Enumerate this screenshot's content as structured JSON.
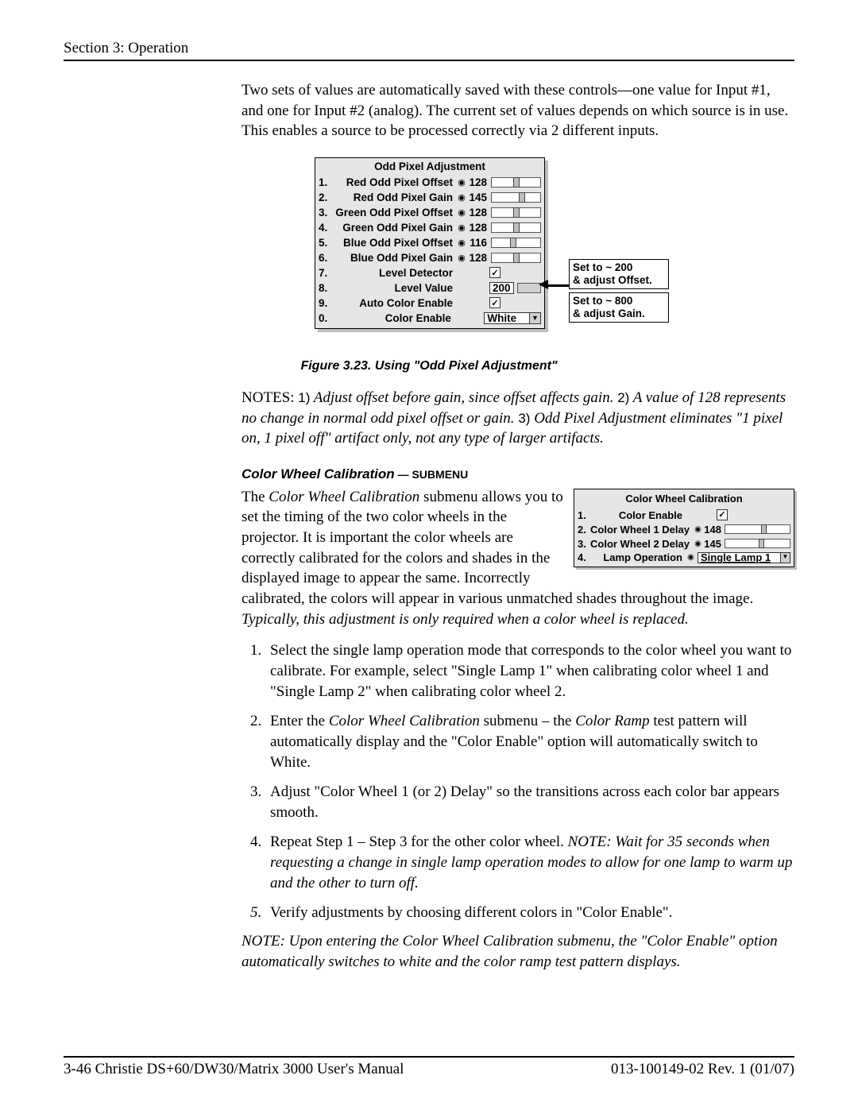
{
  "header": {
    "section": "Section 3: Operation"
  },
  "intro": "Two sets of values are automatically saved with these controls—one value for Input #1, and one for Input #2 (analog). The current set of values depends on which source is in use. This enables a source to be processed correctly via 2 different inputs.",
  "opa": {
    "title": "Odd Pixel Adjustment",
    "rows": [
      {
        "num": "1.",
        "label": "Red Odd Pixel Offset",
        "value": "128",
        "thumb_pct": 45
      },
      {
        "num": "2.",
        "label": "Red Odd Pixel Gain",
        "value": "145",
        "thumb_pct": 55
      },
      {
        "num": "3.",
        "label": "Green Odd Pixel Offset",
        "value": "128",
        "thumb_pct": 45
      },
      {
        "num": "4.",
        "label": "Green Odd Pixel Gain",
        "value": "128",
        "thumb_pct": 45
      },
      {
        "num": "5.",
        "label": "Blue Odd Pixel Offset",
        "value": "116",
        "thumb_pct": 38
      },
      {
        "num": "6.",
        "label": "Blue Odd Pixel Gain",
        "value": "128",
        "thumb_pct": 45
      }
    ],
    "level_detector": {
      "num": "7.",
      "label": "Level Detector",
      "checked": true
    },
    "level_value": {
      "num": "8.",
      "label": "Level Value",
      "value": "200"
    },
    "auto_color": {
      "num": "9.",
      "label": "Auto Color Enable",
      "checked": true
    },
    "color_enable": {
      "num": "0.",
      "label": "Color Enable",
      "value": "White"
    },
    "annot_offset": "Set to ~ 200\n& adjust Offset.",
    "annot_gain": "Set to ~ 800\n& adjust Gain."
  },
  "figcap": "Figure 3.23. Using \"Odd Pixel Adjustment\"",
  "notes": {
    "lead": "NOTES:",
    "n1": "1)",
    "t1": " Adjust offset before gain, since offset affects gain. ",
    "n2": "2)",
    "t2": " A value of 128 represents no change in normal odd pixel offset or gain. ",
    "n3": "3)",
    "t3": " Odd Pixel Adjustment eliminates \"1 pixel on, 1 pixel off\" artifact only, not any type of larger artifacts."
  },
  "cwc": {
    "heading": "Color Wheel Calibration",
    "tag": " — SUBMENU",
    "panel_title": "Color Wheel Calibration",
    "rows": {
      "enable": {
        "num": "1.",
        "label": "Color Enable",
        "checked": true
      },
      "d1": {
        "num": "2.",
        "label": "Color Wheel 1 Delay",
        "value": "148",
        "thumb_pct": 55
      },
      "d2": {
        "num": "3.",
        "label": "Color Wheel 2 Delay",
        "value": "145",
        "thumb_pct": 52
      },
      "lamp": {
        "num": "4.",
        "label": "Lamp Operation",
        "value": "Single Lamp 1"
      }
    },
    "para_a": "The ",
    "para_a_em": "Color Wheel Calibration",
    "para_b": " submenu allows you to set the timing of the two color wheels in the projector. It is important the color wheels are correctly calibrated for the colors and shades in the displayed image to appear the same. Incorrectly calibrated, the colors will appear in various unmatched shades throughout the image. ",
    "para_c_em": "Typically, this adjustment is only required when a color wheel is replaced."
  },
  "steps": [
    "Select the single lamp operation mode that corresponds to the color wheel you want to calibrate. For example, select \"Single Lamp 1\" when calibrating color wheel 1 and \"Single Lamp 2\" when calibrating color wheel 2.",
    "__STEP2__",
    "Adjust \"Color Wheel 1 (or 2) Delay\" so the transitions across each color bar appears smooth.",
    "__STEP4__",
    "Verify adjustments by choosing different colors in \"Color Enable\"."
  ],
  "step2": {
    "a": "Enter the ",
    "em1": "Color Wheel Calibration",
    "b": " submenu – the ",
    "em2": "Color Ramp",
    "c": " test pattern will automatically display and the \"Color Enable\" option will automatically switch to White."
  },
  "step4": {
    "a": "Repeat Step 1 – Step 3 for the other color wheel. ",
    "em": "NOTE: Wait for 35 seconds when requesting a change in single lamp operation modes to allow for one lamp to warm up and the other to turn off."
  },
  "note2": "NOTE: Upon entering the Color Wheel Calibration submenu, the \"Color Enable\" option automatically switches to white and the color ramp test pattern displays.",
  "footer": {
    "left_a": "3-46",
    "left_b": "   Christie DS+60/DW30/Matrix 3000 User's Manual",
    "right": "013-100149-02 Rev. 1 (01/07)"
  },
  "colors": {
    "panel_bg": "#e6e6e6",
    "panel_shadow": "#bfbfbf",
    "text": "#000000",
    "page_bg": "#ffffff"
  }
}
